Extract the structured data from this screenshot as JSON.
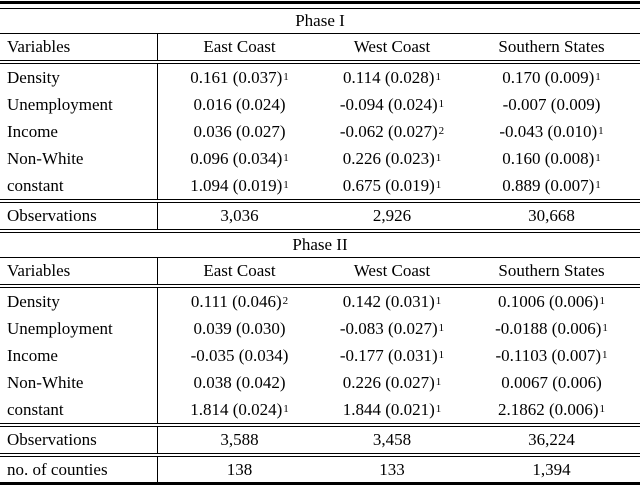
{
  "table": {
    "counties": {
      "label": "no. of counties",
      "c1": "138",
      "c2": "133",
      "c3": "1,394"
    },
    "phases": [
      {
        "title": "Phase I",
        "header": {
          "variables": "Variables",
          "col1": "East Coast",
          "col2": "West Coast",
          "col3": "Southern States"
        },
        "rows": [
          {
            "label": "Density",
            "c1": "0.161 (0.037)",
            "s1": "1",
            "c2": "0.114 (0.028)",
            "s2": "1",
            "c3": "0.170 (0.009)",
            "s3": "1"
          },
          {
            "label": "Unemployment",
            "c1": "0.016 (0.024)",
            "s1": "",
            "c2": "-0.094 (0.024)",
            "s2": "1",
            "c3": "-0.007 (0.009)",
            "s3": ""
          },
          {
            "label": "Income",
            "c1": "0.036 (0.027)",
            "s1": "",
            "c2": "-0.062 (0.027)",
            "s2": "2",
            "c3": "-0.043 (0.010)",
            "s3": "1"
          },
          {
            "label": "Non-White",
            "c1": "0.096 (0.034)",
            "s1": "1",
            "c2": "0.226 (0.023)",
            "s2": "1",
            "c3": "0.160 (0.008)",
            "s3": "1"
          },
          {
            "label": "constant",
            "c1": "1.094 (0.019)",
            "s1": "1",
            "c2": "0.675 (0.019)",
            "s2": "1",
            "c3": "0.889 (0.007)",
            "s3": "1"
          }
        ],
        "observations": {
          "label": "Observations",
          "c1": "3,036",
          "c2": "2,926",
          "c3": "30,668"
        }
      },
      {
        "title": "Phase II",
        "header": {
          "variables": "Variables",
          "col1": "East Coast",
          "col2": "West Coast",
          "col3": "Southern States"
        },
        "rows": [
          {
            "label": "Density",
            "c1": "0.111 (0.046)",
            "s1": "2",
            "c2": "0.142 (0.031)",
            "s2": "1",
            "c3": "0.1006 (0.006)",
            "s3": "1"
          },
          {
            "label": "Unemployment",
            "c1": "0.039 (0.030)",
            "s1": "",
            "c2": "-0.083 (0.027)",
            "s2": "1",
            "c3": "-0.0188 (0.006)",
            "s3": "1"
          },
          {
            "label": "Income",
            "c1": "-0.035 (0.034)",
            "s1": "",
            "c2": "-0.177 (0.031)",
            "s2": "1",
            "c3": "-0.1103 (0.007)",
            "s3": "1"
          },
          {
            "label": "Non-White",
            "c1": "0.038 (0.042)",
            "s1": "",
            "c2": "0.226 (0.027)",
            "s2": "1",
            "c3": "0.0067 (0.006)",
            "s3": ""
          },
          {
            "label": "constant",
            "c1": "1.814 (0.024)",
            "s1": "1",
            "c2": "1.844 (0.021)",
            "s2": "1",
            "c3": "2.1862 (0.006)",
            "s3": "1"
          }
        ],
        "observations": {
          "label": "Observations",
          "c1": "3,588",
          "c2": "3,458",
          "c3": "36,224"
        }
      }
    ]
  }
}
